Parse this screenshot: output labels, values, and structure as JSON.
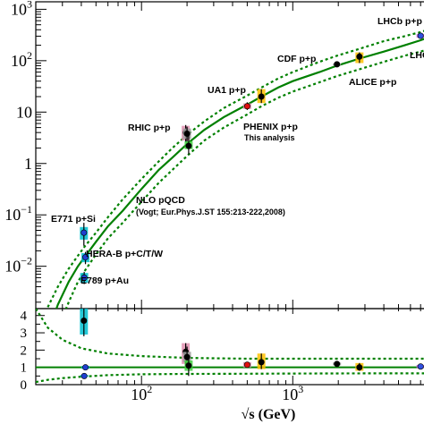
{
  "chart_data": [
    {
      "type": "scatter",
      "panel": "cross-section",
      "scale": "log-log",
      "xlim": [
        20,
        8000
      ],
      "ylim": [
        0.0015,
        1400
      ],
      "y_ticks": [
        {
          "value": 0.01,
          "mant": "10",
          "exp": "−2"
        },
        {
          "value": 0.1,
          "mant": "10",
          "exp": "−1"
        },
        {
          "value": 1,
          "mant": "1",
          "exp": ""
        },
        {
          "value": 10,
          "mant": "10",
          "exp": ""
        },
        {
          "value": 100,
          "mant": "10",
          "exp": "2"
        },
        {
          "value": 1000,
          "mant": "10",
          "exp": "3"
        }
      ],
      "theory": {
        "label": "NLO pQCD",
        "reference": "(Vogt; Eur.Phys.J.ST 155:213-222,2008)",
        "color": "#008000",
        "central": [
          [
            24,
            0.0005
          ],
          [
            28,
            0.0018
          ],
          [
            33,
            0.005
          ],
          [
            38,
            0.01
          ],
          [
            42,
            0.015
          ],
          [
            50,
            0.03
          ],
          [
            60,
            0.06
          ],
          [
            75,
            0.12
          ],
          [
            100,
            0.32
          ],
          [
            130,
            0.75
          ],
          [
            160,
            1.3
          ],
          [
            200,
            2.4
          ],
          [
            260,
            4.5
          ],
          [
            350,
            8.0
          ],
          [
            500,
            14
          ],
          [
            620,
            20
          ],
          [
            800,
            30
          ],
          [
            1000,
            40
          ],
          [
            1500,
            60
          ],
          [
            1960,
            80
          ],
          [
            2760,
            110
          ],
          [
            4000,
            150
          ],
          [
            5500,
            200
          ],
          [
            7000,
            250
          ],
          [
            8000,
            290
          ]
        ],
        "upper": [
          [
            24,
            0.0016
          ],
          [
            28,
            0.004
          ],
          [
            33,
            0.009
          ],
          [
            38,
            0.016
          ],
          [
            42,
            0.024
          ],
          [
            50,
            0.045
          ],
          [
            60,
            0.09
          ],
          [
            75,
            0.2
          ],
          [
            100,
            0.5
          ],
          [
            130,
            1.1
          ],
          [
            160,
            2.0
          ],
          [
            200,
            3.6
          ],
          [
            260,
            6.6
          ],
          [
            350,
            12
          ],
          [
            500,
            21
          ],
          [
            620,
            30
          ],
          [
            800,
            45
          ],
          [
            1000,
            60
          ],
          [
            1500,
            95
          ],
          [
            1960,
            125
          ],
          [
            2760,
            170
          ],
          [
            4000,
            240
          ],
          [
            5500,
            300
          ],
          [
            7000,
            360
          ],
          [
            8000,
            410
          ]
        ],
        "lower": [
          [
            24,
            0.00015
          ],
          [
            28,
            0.0006
          ],
          [
            33,
            0.002
          ],
          [
            38,
            0.005
          ],
          [
            42,
            0.008
          ],
          [
            50,
            0.017
          ],
          [
            60,
            0.035
          ],
          [
            75,
            0.07
          ],
          [
            100,
            0.18
          ],
          [
            130,
            0.42
          ],
          [
            160,
            0.75
          ],
          [
            200,
            1.4
          ],
          [
            260,
            2.8
          ],
          [
            350,
            5
          ],
          [
            500,
            9
          ],
          [
            620,
            13
          ],
          [
            800,
            19
          ],
          [
            1000,
            25
          ],
          [
            1500,
            38
          ],
          [
            1960,
            50
          ],
          [
            2760,
            68
          ],
          [
            4000,
            95
          ],
          [
            5500,
            125
          ],
          [
            7000,
            150
          ],
          [
            8000,
            170
          ]
        ]
      },
      "points": [
        {
          "x": 41.6,
          "y": 0.045,
          "err": [
            0.025,
            0.07
          ],
          "box": [
            0.033,
            0.058
          ],
          "box_color": "#00c0d0",
          "marker_color": "#1f3fd0"
        },
        {
          "x": 42.6,
          "y": 0.015,
          "err": [
            0.011,
            0.019
          ],
          "box": [
            0.012,
            0.018
          ],
          "box_color": "#00c0d0",
          "marker_color": "#1f3fd0"
        },
        {
          "x": 41.8,
          "y": 0.006,
          "err": [
            0.0045,
            0.0078
          ],
          "box": [
            0.0048,
            0.0074
          ],
          "box_color": "#00c0d0",
          "marker_color": "#1f3fd0"
        },
        {
          "x": 196,
          "y": 4.0,
          "err": [
            2.6,
            5.6
          ],
          "box": [
            2.8,
            5.4
          ],
          "box_color": "#e090b0",
          "marker_color": "#000000"
        },
        {
          "x": 200,
          "y": 3.8,
          "err": [
            2.4,
            5.2
          ],
          "box": [
            3.0,
            4.8
          ],
          "box_color": "#a0a0a0",
          "marker_color": "#000000"
        },
        {
          "x": 205,
          "y": 2.2,
          "err": [
            1.5,
            3.5
          ],
          "box": [
            1.9,
            2.7
          ],
          "box_color": "#40d040",
          "marker_color": "#000000"
        },
        {
          "x": 500,
          "y": 13.0,
          "err": [
            11.0,
            15.5
          ],
          "box": [
            11.5,
            14.8
          ],
          "box_color": "#e090b0",
          "marker_color": "#e01010"
        },
        {
          "x": 620,
          "y": 20.0,
          "err": [
            15.0,
            28.0
          ],
          "box": [
            15.0,
            28.0
          ],
          "box_color": "#ffc000",
          "marker_color": "#000000"
        },
        {
          "x": 1960,
          "y": 85.0,
          "err": [
            80.0,
            90.0
          ],
          "box": [
            82.0,
            88.0
          ],
          "box_color": "#a0a0a0",
          "marker_color": "#000000"
        },
        {
          "x": 2760,
          "y": 120.0,
          "err": [
            90.0,
            145.0
          ],
          "box": [
            90.0,
            145.0
          ],
          "box_color": "#ffc000",
          "marker_color": "#000000"
        },
        {
          "x": 7000,
          "y": 305.0,
          "err": [
            270.0,
            340.0
          ],
          "box": [
            280.0,
            330.0
          ],
          "box_color": "#c060e0",
          "marker_color": "#3050e0"
        }
      ],
      "annotations": {
        "lhcb": "LHCb p+p",
        "lhc_partial": "LHC",
        "cdf": "CDF p+p",
        "ua1": "UA1 p+p",
        "alice": "ALICE p+p",
        "rhic": "RHIC p+p",
        "phenix": "PHENIX p+p",
        "phenix_sub": "This analysis",
        "nlo": "NLO pQCD",
        "vogt": "(Vogt; Eur.Phys.J.ST 155:213-222,2008)",
        "e771": "E771 p+Si",
        "herab": "HERA-B p+C/T/W",
        "e789": "E789 p+Au"
      }
    },
    {
      "type": "scatter",
      "panel": "ratio",
      "scale": "log-x",
      "xlim": [
        20,
        8000
      ],
      "ylim": [
        0,
        4.4
      ],
      "y_ticks": [
        {
          "value": 0,
          "label": "0"
        },
        {
          "value": 1,
          "label": "1"
        },
        {
          "value": 2,
          "label": "2"
        },
        {
          "value": 3,
          "label": "3"
        },
        {
          "value": 4,
          "label": "4"
        }
      ],
      "x_ticks": [
        {
          "value": 100,
          "mant": "10",
          "exp": "2"
        },
        {
          "value": 1000,
          "mant": "10",
          "exp": "3"
        }
      ],
      "xlabel": "√s (GeV)",
      "reference_line": 1,
      "band_upper": [
        [
          20,
          4.4
        ],
        [
          24,
          3.3
        ],
        [
          30,
          2.6
        ],
        [
          40,
          2.1
        ],
        [
          60,
          1.8
        ],
        [
          100,
          1.65
        ],
        [
          200,
          1.55
        ],
        [
          500,
          1.5
        ],
        [
          1000,
          1.5
        ],
        [
          3000,
          1.5
        ],
        [
          8000,
          1.5
        ]
      ],
      "band_lower": [
        [
          20,
          0.15
        ],
        [
          24,
          0.28
        ],
        [
          30,
          0.38
        ],
        [
          40,
          0.46
        ],
        [
          60,
          0.55
        ],
        [
          100,
          0.6
        ],
        [
          200,
          0.62
        ],
        [
          500,
          0.63
        ],
        [
          1000,
          0.64
        ],
        [
          3000,
          0.65
        ],
        [
          8000,
          0.65
        ]
      ],
      "points": [
        {
          "x": 41.6,
          "y": 3.7,
          "err": [
            2.8,
            4.4
          ],
          "box": [
            2.9,
            4.4
          ],
          "box_color": "#00c0d0",
          "marker_color": "#000000"
        },
        {
          "x": 42.6,
          "y": 1.0,
          "err": [
            0.9,
            1.1
          ],
          "box": [
            0.92,
            1.08
          ],
          "box_color": "#00c0d0",
          "marker_color": "#1f3fd0"
        },
        {
          "x": 41.8,
          "y": 0.5,
          "err": [
            0.45,
            0.56
          ],
          "box": [
            0.45,
            0.56
          ],
          "box_color": "#00c0d0",
          "marker_color": "#1f3fd0"
        },
        {
          "x": 196,
          "y": 1.9,
          "err": [
            1.1,
            2.4
          ],
          "box": [
            1.2,
            2.4
          ],
          "box_color": "#e090b0",
          "marker_color": "#000000"
        },
        {
          "x": 200,
          "y": 1.6,
          "err": [
            1.0,
            2.2
          ],
          "box": [
            1.3,
            1.9
          ],
          "box_color": "#a0a0a0",
          "marker_color": "#000000"
        },
        {
          "x": 205,
          "y": 1.1,
          "err": [
            0.5,
            1.7
          ],
          "box": [
            0.8,
            1.4
          ],
          "box_color": "#40d040",
          "marker_color": "#000000"
        },
        {
          "x": 500,
          "y": 1.15,
          "err": [
            1.0,
            1.3
          ],
          "box": [
            1.0,
            1.3
          ],
          "box_color": "#e090b0",
          "marker_color": "#e01010"
        },
        {
          "x": 620,
          "y": 1.3,
          "err": [
            0.9,
            1.8
          ],
          "box": [
            0.9,
            1.8
          ],
          "box_color": "#ffc000",
          "marker_color": "#000000"
        },
        {
          "x": 1960,
          "y": 1.2,
          "err": [
            1.1,
            1.3
          ],
          "box": [
            1.12,
            1.28
          ],
          "box_color": "#a0a0a0",
          "marker_color": "#000000"
        },
        {
          "x": 2760,
          "y": 1.0,
          "err": [
            0.8,
            1.25
          ],
          "box": [
            0.8,
            1.25
          ],
          "box_color": "#ffc000",
          "marker_color": "#000000"
        },
        {
          "x": 7000,
          "y": 1.05,
          "err": [
            0.95,
            1.15
          ],
          "box": [
            0.96,
            1.14
          ],
          "box_color": "#c060e0",
          "marker_color": "#3050e0"
        }
      ]
    }
  ]
}
